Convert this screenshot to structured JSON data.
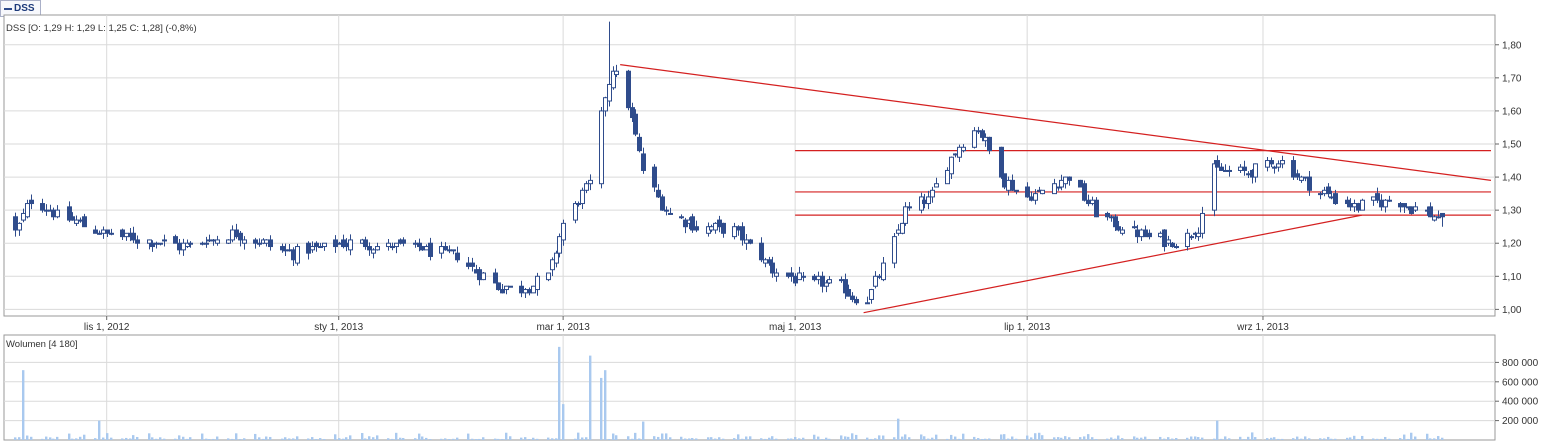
{
  "legend_tab": {
    "label": "DSS"
  },
  "price_panel": {
    "info": "DSS [O: 1,29  H: 1,29  L: 1,25  C: 1,28] (-0,8%)"
  },
  "volume_panel": {
    "info": "Wolumen [4 180]"
  },
  "colors": {
    "candle": "#2f4c8c",
    "trendline": "#d42020",
    "volume_bar": "#a9c9ef",
    "grid": "#dadada",
    "frame": "#9a9a9a"
  },
  "chart_data": [
    {
      "type": "candlestick",
      "title": "DSS [O: 1,29  H: 1,29  L: 1,25  C: 1,28] (-0,8%)",
      "x_ticks": [
        "lis 1, 2012",
        "sty 1, 2013",
        "mar 1, 2013",
        "maj 1, 2013",
        "lip 1, 2013",
        "wrz 1, 2013"
      ],
      "y_ticks": [
        "1,00",
        "1,10",
        "1,20",
        "1,30",
        "1,40",
        "1,50",
        "1,60",
        "1,70",
        "1,80"
      ],
      "ylim": [
        0.98,
        1.89
      ],
      "y_scale": "linear",
      "grid": true,
      "date_range": [
        "2012-10-07",
        "2013-10-18"
      ],
      "last_bar": {
        "open": 1.29,
        "high": 1.29,
        "low": 1.25,
        "close": 1.28,
        "change_pct": -0.8
      },
      "anchors": [
        [
          "2012-10-08",
          1.23
        ],
        [
          "2012-10-12",
          1.33
        ],
        [
          "2012-10-20",
          1.28
        ],
        [
          "2012-11-01",
          1.23
        ],
        [
          "2012-11-20",
          1.19
        ],
        [
          "2012-12-05",
          1.23
        ],
        [
          "2012-12-20",
          1.17
        ],
        [
          "2013-01-01",
          1.2
        ],
        [
          "2013-01-20",
          1.19
        ],
        [
          "2013-02-01",
          1.16
        ],
        [
          "2013-02-12",
          1.07
        ],
        [
          "2013-02-18",
          1.06
        ],
        [
          "2013-02-25",
          1.1
        ],
        [
          "2013-03-01",
          1.26
        ],
        [
          "2013-03-08",
          1.38
        ],
        [
          "2013-03-12",
          1.65
        ],
        [
          "2013-03-14",
          1.73
        ],
        [
          "2013-03-18",
          1.62
        ],
        [
          "2013-03-22",
          1.42
        ],
        [
          "2013-03-28",
          1.3
        ],
        [
          "2013-04-05",
          1.25
        ],
        [
          "2013-04-15",
          1.24
        ],
        [
          "2013-04-25",
          1.12
        ],
        [
          "2013-05-05",
          1.08
        ],
        [
          "2013-05-12",
          1.08
        ],
        [
          "2013-05-19",
          1.01
        ],
        [
          "2013-05-25",
          1.15
        ],
        [
          "2013-05-30",
          1.3
        ],
        [
          "2013-06-05",
          1.33
        ],
        [
          "2013-06-12",
          1.48
        ],
        [
          "2013-06-18",
          1.55
        ],
        [
          "2013-06-25",
          1.39
        ],
        [
          "2013-07-01",
          1.34
        ],
        [
          "2013-07-12",
          1.4
        ],
        [
          "2013-07-20",
          1.28
        ],
        [
          "2013-08-01",
          1.22
        ],
        [
          "2013-08-10",
          1.2
        ],
        [
          "2013-08-15",
          1.25
        ],
        [
          "2013-08-19",
          1.42
        ],
        [
          "2013-08-28",
          1.41
        ],
        [
          "2013-09-05",
          1.45
        ],
        [
          "2013-09-15",
          1.36
        ],
        [
          "2013-09-25",
          1.31
        ],
        [
          "2013-10-05",
          1.33
        ],
        [
          "2013-10-17",
          1.28
        ]
      ],
      "horizontal_lines": [
        {
          "y": 1.48,
          "from": "2013-05-01",
          "to": "2013-10-31"
        },
        {
          "y": 1.355,
          "from": "2013-05-01",
          "to": "2013-10-31"
        },
        {
          "y": 1.285,
          "from": "2013-05-01",
          "to": "2013-10-31"
        }
      ],
      "trendlines": [
        {
          "from": [
            "2013-03-16",
            1.74
          ],
          "to": [
            "2013-10-31",
            1.39
          ]
        },
        {
          "from": [
            "2013-05-19",
            0.99
          ],
          "to": [
            "2013-09-27",
            1.285
          ]
        }
      ]
    },
    {
      "type": "bar",
      "title": "Wolumen [4 180]",
      "y_ticks": [
        "200 000",
        "400 000",
        "600 000",
        "800 000"
      ],
      "ylim": [
        0,
        1000000
      ],
      "spikes": [
        [
          "2012-10-10",
          720000
        ],
        [
          "2012-10-30",
          200000
        ],
        [
          "2013-01-06",
          280000
        ],
        [
          "2013-02-28",
          960000
        ],
        [
          "2013-03-01",
          370000
        ],
        [
          "2013-03-02",
          340000
        ],
        [
          "2013-03-03",
          300000
        ],
        [
          "2013-03-08",
          870000
        ],
        [
          "2013-03-09",
          260000
        ],
        [
          "2013-03-11",
          640000
        ],
        [
          "2013-03-12",
          720000
        ],
        [
          "2013-03-16",
          210000
        ],
        [
          "2013-03-22",
          190000
        ],
        [
          "2013-05-28",
          220000
        ],
        [
          "2013-08-20",
          200000
        ]
      ],
      "baseline_range": [
        10000,
        90000
      ]
    }
  ]
}
